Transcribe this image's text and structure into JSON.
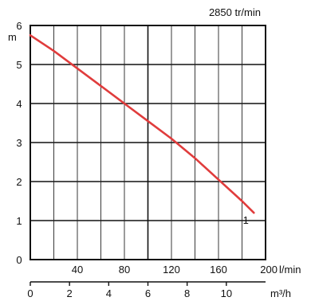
{
  "chart_data": {
    "type": "line",
    "title": "2850 tr/min",
    "ylabel": "m",
    "ylim": [
      0,
      6
    ],
    "y_ticks": [
      0,
      1,
      2,
      3,
      4,
      5,
      6
    ],
    "x_lpm_unit": "l/min",
    "x_lpm_ticks": [
      40,
      80,
      120,
      160,
      200
    ],
    "x_m3h_unit": "m³/h",
    "x_m3h_ticks": [
      0,
      2,
      4,
      6,
      8,
      10
    ],
    "xlim_lpm": [
      0,
      200
    ],
    "grid": true,
    "series": [
      {
        "name": "1",
        "color": "#e03c3c",
        "x": [
          0,
          20,
          40,
          60,
          80,
          100,
          120,
          140,
          160,
          180,
          190
        ],
        "y": [
          5.75,
          5.35,
          4.9,
          4.45,
          4.0,
          3.55,
          3.1,
          2.6,
          2.05,
          1.5,
          1.2
        ]
      }
    ]
  }
}
